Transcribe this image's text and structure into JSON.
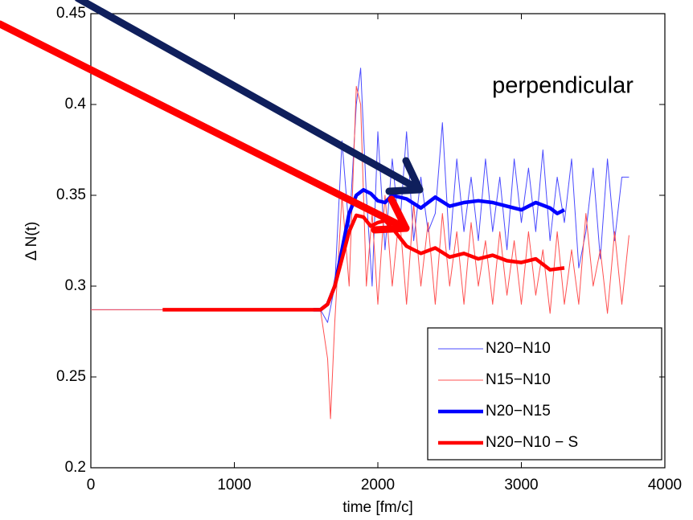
{
  "chart_data": {
    "type": "line",
    "xlabel": "time [fm/c]",
    "ylabel": "Δ N(t)",
    "annotation": "perpendicular",
    "xlim": [
      0,
      4000
    ],
    "ylim": [
      0.2,
      0.45
    ],
    "xticks": [
      0,
      1000,
      2000,
      3000,
      4000
    ],
    "yticks": [
      0.2,
      0.25,
      0.3,
      0.35,
      0.4,
      0.45
    ],
    "legend": "lower right",
    "series": [
      {
        "name": "N20−N10",
        "color": "#4a4aff",
        "line_width": 1,
        "x": [
          0,
          1600,
          1650,
          1700,
          1750,
          1800,
          1850,
          1880,
          1920,
          1960,
          2000,
          2050,
          2100,
          2150,
          2200,
          2250,
          2300,
          2350,
          2400,
          2450,
          2500,
          2550,
          2600,
          2650,
          2700,
          2750,
          2800,
          2850,
          2900,
          2950,
          3000,
          3050,
          3100,
          3150,
          3200,
          3250,
          3300,
          3350,
          3400,
          3450,
          3500,
          3550,
          3600,
          3650,
          3700,
          3750
        ],
        "values": [
          0.287,
          0.287,
          0.28,
          0.3,
          0.38,
          0.33,
          0.4,
          0.42,
          0.35,
          0.3,
          0.385,
          0.32,
          0.37,
          0.33,
          0.385,
          0.325,
          0.36,
          0.33,
          0.34,
          0.39,
          0.32,
          0.37,
          0.33,
          0.36,
          0.325,
          0.37,
          0.33,
          0.36,
          0.32,
          0.37,
          0.335,
          0.365,
          0.33,
          0.375,
          0.325,
          0.36,
          0.335,
          0.37,
          0.31,
          0.33,
          0.365,
          0.315,
          0.37,
          0.325,
          0.36,
          0.36
        ]
      },
      {
        "name": "N15−N10",
        "color": "#ff5050",
        "line_width": 1,
        "x": [
          0,
          1600,
          1650,
          1670,
          1700,
          1750,
          1800,
          1850,
          1880,
          1920,
          1960,
          2000,
          2050,
          2100,
          2150,
          2200,
          2250,
          2300,
          2350,
          2400,
          2450,
          2500,
          2550,
          2600,
          2650,
          2700,
          2750,
          2800,
          2850,
          2900,
          2950,
          3000,
          3050,
          3100,
          3150,
          3200,
          3250,
          3300,
          3350,
          3400,
          3450,
          3500,
          3550,
          3600,
          3650,
          3700,
          3750
        ],
        "values": [
          0.287,
          0.287,
          0.26,
          0.227,
          0.28,
          0.35,
          0.3,
          0.41,
          0.4,
          0.3,
          0.34,
          0.29,
          0.35,
          0.3,
          0.34,
          0.29,
          0.345,
          0.3,
          0.335,
          0.29,
          0.34,
          0.3,
          0.33,
          0.29,
          0.335,
          0.3,
          0.325,
          0.29,
          0.33,
          0.295,
          0.325,
          0.29,
          0.33,
          0.295,
          0.32,
          0.285,
          0.33,
          0.29,
          0.32,
          0.29,
          0.34,
          0.3,
          0.32,
          0.285,
          0.33,
          0.29,
          0.328
        ]
      },
      {
        "name": "N20−N15",
        "color": "#0000ff",
        "line_width": 4.5,
        "x": [
          1550,
          1600,
          1650,
          1700,
          1750,
          1800,
          1850,
          1900,
          1950,
          2000,
          2050,
          2100,
          2200,
          2300,
          2400,
          2500,
          2600,
          2700,
          2800,
          2900,
          3000,
          3100,
          3200,
          3250,
          3300
        ],
        "values": [
          0.287,
          0.287,
          0.29,
          0.3,
          0.32,
          0.34,
          0.35,
          0.353,
          0.351,
          0.347,
          0.346,
          0.35,
          0.348,
          0.343,
          0.349,
          0.344,
          0.346,
          0.347,
          0.346,
          0.344,
          0.342,
          0.346,
          0.343,
          0.34,
          0.342
        ]
      },
      {
        "name": "N20−N10 − S",
        "color": "#ff0000",
        "line_width": 4.5,
        "x": [
          500,
          1000,
          1500,
          1550,
          1600,
          1650,
          1700,
          1750,
          1800,
          1850,
          1900,
          1950,
          2000,
          2050,
          2100,
          2200,
          2300,
          2400,
          2500,
          2600,
          2700,
          2800,
          2900,
          3000,
          3100,
          3200,
          3300
        ],
        "values": [
          0.287,
          0.287,
          0.287,
          0.287,
          0.287,
          0.29,
          0.3,
          0.315,
          0.33,
          0.339,
          0.338,
          0.333,
          0.335,
          0.336,
          0.332,
          0.322,
          0.318,
          0.321,
          0.316,
          0.318,
          0.315,
          0.317,
          0.314,
          0.313,
          0.315,
          0.309,
          0.31
        ]
      }
    ]
  }
}
